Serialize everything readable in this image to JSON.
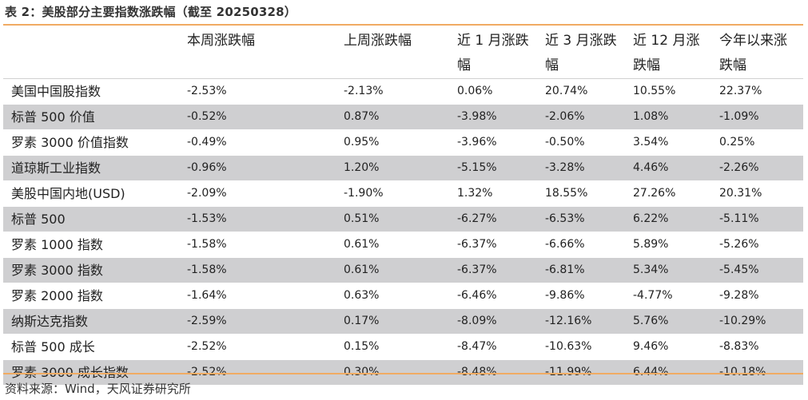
{
  "caption": "表 2：美股部分主要指数涨跌幅（截至 20250328）",
  "columns": [
    "",
    "本周涨跌幅",
    "上周涨跌幅",
    "近 1 月涨跌幅",
    "近 3 月涨跌幅",
    "近 12 月涨跌幅",
    "今年以来涨跌幅"
  ],
  "rows": [
    {
      "name": "美国中国股指数",
      "values": [
        "-2.53%",
        "-2.13%",
        "0.06%",
        "20.74%",
        "10.55%",
        "22.37%"
      ]
    },
    {
      "name": "标普 500 价值",
      "values": [
        "-0.52%",
        "0.87%",
        "-3.98%",
        "-2.06%",
        "1.08%",
        "-1.09%"
      ]
    },
    {
      "name": "罗素 3000 价值指数",
      "values": [
        "-0.49%",
        "0.95%",
        "-3.96%",
        "-0.50%",
        "3.54%",
        "0.25%"
      ]
    },
    {
      "name": "道琼斯工业指数",
      "values": [
        "-0.96%",
        "1.20%",
        "-5.15%",
        "-3.28%",
        "4.46%",
        "-2.26%"
      ]
    },
    {
      "name": "美股中国内地(USD)",
      "values": [
        "-2.09%",
        "-1.90%",
        "1.32%",
        "18.55%",
        "27.26%",
        "20.31%"
      ]
    },
    {
      "name": "标普 500",
      "values": [
        "-1.53%",
        "0.51%",
        "-6.27%",
        "-6.53%",
        "6.22%",
        "-5.11%"
      ]
    },
    {
      "name": "罗素 1000 指数",
      "values": [
        "-1.58%",
        "0.61%",
        "-6.37%",
        "-6.66%",
        "5.89%",
        "-5.26%"
      ]
    },
    {
      "name": "罗素 3000 指数",
      "values": [
        "-1.58%",
        "0.61%",
        "-6.37%",
        "-6.81%",
        "5.34%",
        "-5.45%"
      ]
    },
    {
      "name": "罗素 2000 指数",
      "values": [
        "-1.64%",
        "0.63%",
        "-6.46%",
        "-9.86%",
        "-4.77%",
        "-9.28%"
      ]
    },
    {
      "name": "纳斯达克指数",
      "values": [
        "-2.59%",
        "0.17%",
        "-8.09%",
        "-12.16%",
        "5.76%",
        "-10.29%"
      ]
    },
    {
      "name": "标普 500 成长",
      "values": [
        "-2.52%",
        "0.15%",
        "-8.47%",
        "-10.63%",
        "9.46%",
        "-8.83%"
      ]
    },
    {
      "name": "罗素 3000 成长指数",
      "values": [
        "-2.52%",
        "0.30%",
        "-8.48%",
        "-11.99%",
        "6.44%",
        "-10.18%"
      ]
    }
  ],
  "source": "资料来源：Wind，天风证券研究所",
  "colors": {
    "accent_rule": "#f0ab63",
    "row_shade": "#cfcfd1"
  }
}
